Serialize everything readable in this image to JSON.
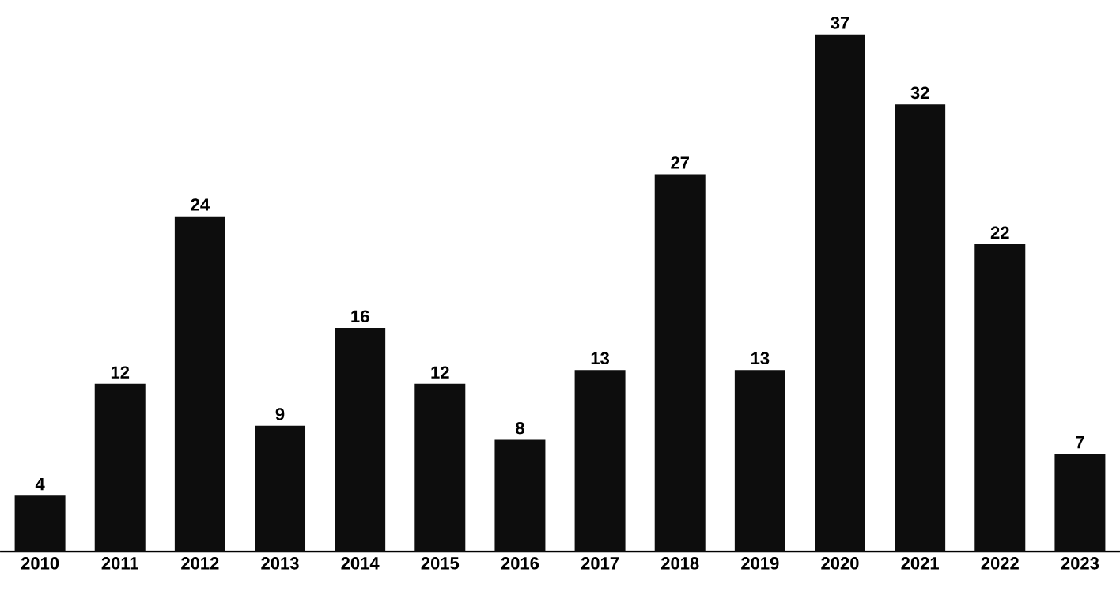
{
  "chart_data": {
    "type": "bar",
    "categories": [
      "2010",
      "2011",
      "2012",
      "2013",
      "2014",
      "2015",
      "2016",
      "2017",
      "2018",
      "2019",
      "2020",
      "2021",
      "2022",
      "2023"
    ],
    "values": [
      4,
      12,
      24,
      9,
      16,
      12,
      8,
      13,
      27,
      13,
      37,
      32,
      22,
      7
    ],
    "color": "#0d0d0d",
    "data_labels": true
  }
}
